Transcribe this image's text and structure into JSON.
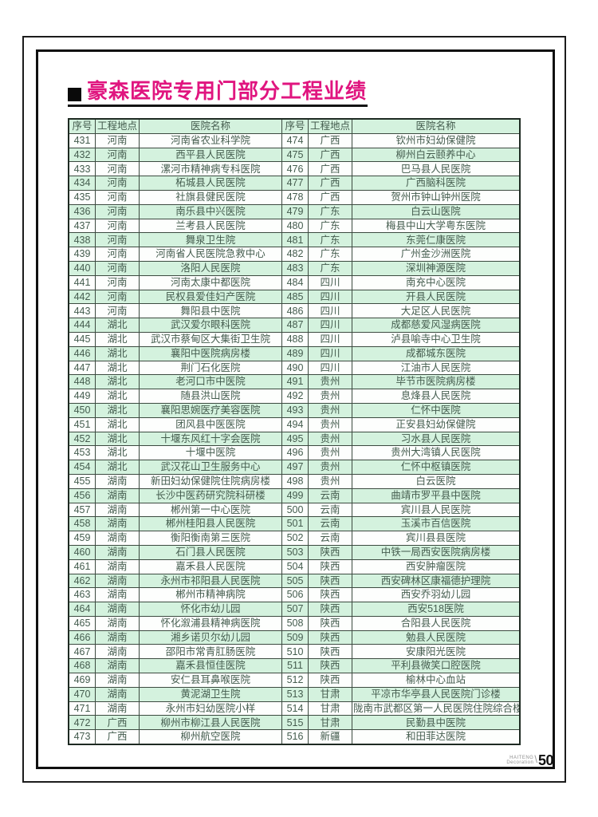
{
  "page": {
    "title": "豪森医院专用门部分工程业绩",
    "footer": {
      "brand_line1": "HAITENG",
      "brand_line2": "Decoration",
      "page_number": "50"
    },
    "colors": {
      "title": "#e0157f",
      "stripe": "#d4f2de",
      "text": "#445c4e"
    }
  },
  "table": {
    "headers": [
      "序号",
      "工程地点",
      "医院名称",
      "序号",
      "工程地点",
      "医院名称"
    ],
    "rows": [
      [
        "431",
        "河南",
        "河南省农业科学院",
        "474",
        "广西",
        "钦州市妇幼保健院"
      ],
      [
        "432",
        "河南",
        "西平县人民医院",
        "475",
        "广西",
        "柳州白云颐养中心"
      ],
      [
        "433",
        "河南",
        "漯河市精神病专科医院",
        "476",
        "广西",
        "巴马县人民医院"
      ],
      [
        "434",
        "河南",
        "柘城县人民医院",
        "477",
        "广西",
        "广西脑科医院"
      ],
      [
        "435",
        "河南",
        "社旗县健民医院",
        "478",
        "广西",
        "贺州市钟山钟州医院"
      ],
      [
        "436",
        "河南",
        "南乐县中兴医院",
        "479",
        "广东",
        "白云山医院"
      ],
      [
        "437",
        "河南",
        "兰考县人民医院",
        "480",
        "广东",
        "梅县中山大学粤东医院"
      ],
      [
        "438",
        "河南",
        "舞泉卫生院",
        "481",
        "广东",
        "东莞仁康医院"
      ],
      [
        "439",
        "河南",
        "河南省人民医院急救中心",
        "482",
        "广东",
        "广州金沙洲医院"
      ],
      [
        "440",
        "河南",
        "洛阳人民医院",
        "483",
        "广东",
        "深圳神源医院"
      ],
      [
        "441",
        "河南",
        "河南太康中都医院",
        "484",
        "四川",
        "南充中心医院"
      ],
      [
        "442",
        "河南",
        "民权县爱佳妇产医院",
        "485",
        "四川",
        "开县人民医院"
      ],
      [
        "443",
        "河南",
        "舞阳县中医院",
        "486",
        "四川",
        "大足区人民医院"
      ],
      [
        "444",
        "湖北",
        "武汉爱尔眼科医院",
        "487",
        "四川",
        "成都慈爱风湿病医院"
      ],
      [
        "445",
        "湖北",
        "武汉市蔡甸区大集街卫生院",
        "488",
        "四川",
        "泸县喻寺中心卫生院"
      ],
      [
        "446",
        "湖北",
        "襄阳中医院病房楼",
        "489",
        "四川",
        "成都城东医院"
      ],
      [
        "447",
        "湖北",
        "荆门石化医院",
        "490",
        "四川",
        "江油市人民医院"
      ],
      [
        "448",
        "湖北",
        "老河口市中医院",
        "491",
        "贵州",
        "毕节市医院病房楼"
      ],
      [
        "449",
        "湖北",
        "随县洪山医院",
        "492",
        "贵州",
        "息烽县人民医院"
      ],
      [
        "450",
        "湖北",
        "襄阳思婉医疗美容医院",
        "493",
        "贵州",
        "仁怀中医院"
      ],
      [
        "451",
        "湖北",
        "团风县中医医院",
        "494",
        "贵州",
        "正安县妇幼保健院"
      ],
      [
        "452",
        "湖北",
        "十堰东风红十字会医院",
        "495",
        "贵州",
        "习水县人民医院"
      ],
      [
        "453",
        "湖北",
        "十堰中医院",
        "496",
        "贵州",
        "贵州大湾镇人民医院"
      ],
      [
        "454",
        "湖北",
        "武汉花山卫生服务中心",
        "497",
        "贵州",
        "仁怀中枢镇医院"
      ],
      [
        "455",
        "湖南",
        "新田妇幼保健院住院病房楼",
        "498",
        "贵州",
        "白云医院"
      ],
      [
        "456",
        "湖南",
        "长沙中医药研究院科研楼",
        "499",
        "云南",
        "曲靖市罗平县中医院"
      ],
      [
        "457",
        "湖南",
        "郴州第一中心医院",
        "500",
        "云南",
        "宾川县人民医院"
      ],
      [
        "458",
        "湖南",
        "郴州桂阳县人民医院",
        "501",
        "云南",
        "玉溪市百信医院"
      ],
      [
        "459",
        "湖南",
        "衡阳衡南第三医院",
        "502",
        "云南",
        "宾川县县医院"
      ],
      [
        "460",
        "湖南",
        "石门县人民医院",
        "503",
        "陕西",
        "中铁一局西安医院病房楼"
      ],
      [
        "461",
        "湖南",
        "嘉禾县人民医院",
        "504",
        "陕西",
        "西安肿瘤医院"
      ],
      [
        "462",
        "湖南",
        "永州市祁阳县人民医院",
        "505",
        "陕西",
        "西安碑林区康福德护理院"
      ],
      [
        "463",
        "湖南",
        "郴州市精神病院",
        "506",
        "陕西",
        "西安乔羽幼儿园"
      ],
      [
        "464",
        "湖南",
        "怀化市幼儿园",
        "507",
        "陕西",
        "西安518医院"
      ],
      [
        "465",
        "湖南",
        "怀化溆浦县精神病医院",
        "508",
        "陕西",
        "合阳县人民医院"
      ],
      [
        "466",
        "湖南",
        "湘乡诺贝尔幼儿园",
        "509",
        "陕西",
        "勉县人民医院"
      ],
      [
        "467",
        "湖南",
        "邵阳市常青肛肠医院",
        "510",
        "陕西",
        "安康阳光医院"
      ],
      [
        "468",
        "湖南",
        "嘉禾县恒佳医院",
        "511",
        "陕西",
        "平利县微笑口腔医院"
      ],
      [
        "469",
        "湖南",
        "安仁县耳鼻喉医院",
        "512",
        "陕西",
        "榆林中心血站"
      ],
      [
        "470",
        "湖南",
        "黄泥湖卫生院",
        "513",
        "甘肃",
        "平凉市华亭县人民医院门诊楼"
      ],
      [
        "471",
        "湖南",
        "永州市妇幼医院小样",
        "514",
        "甘肃",
        "陇南市武都区第一人民医院住院综合楼"
      ],
      [
        "472",
        "广西",
        "柳州市柳江县人民医院",
        "515",
        "甘肃",
        "民勤县中医院"
      ],
      [
        "473",
        "广西",
        "柳州航空医院",
        "516",
        "新疆",
        "和田菲达医院"
      ]
    ]
  }
}
